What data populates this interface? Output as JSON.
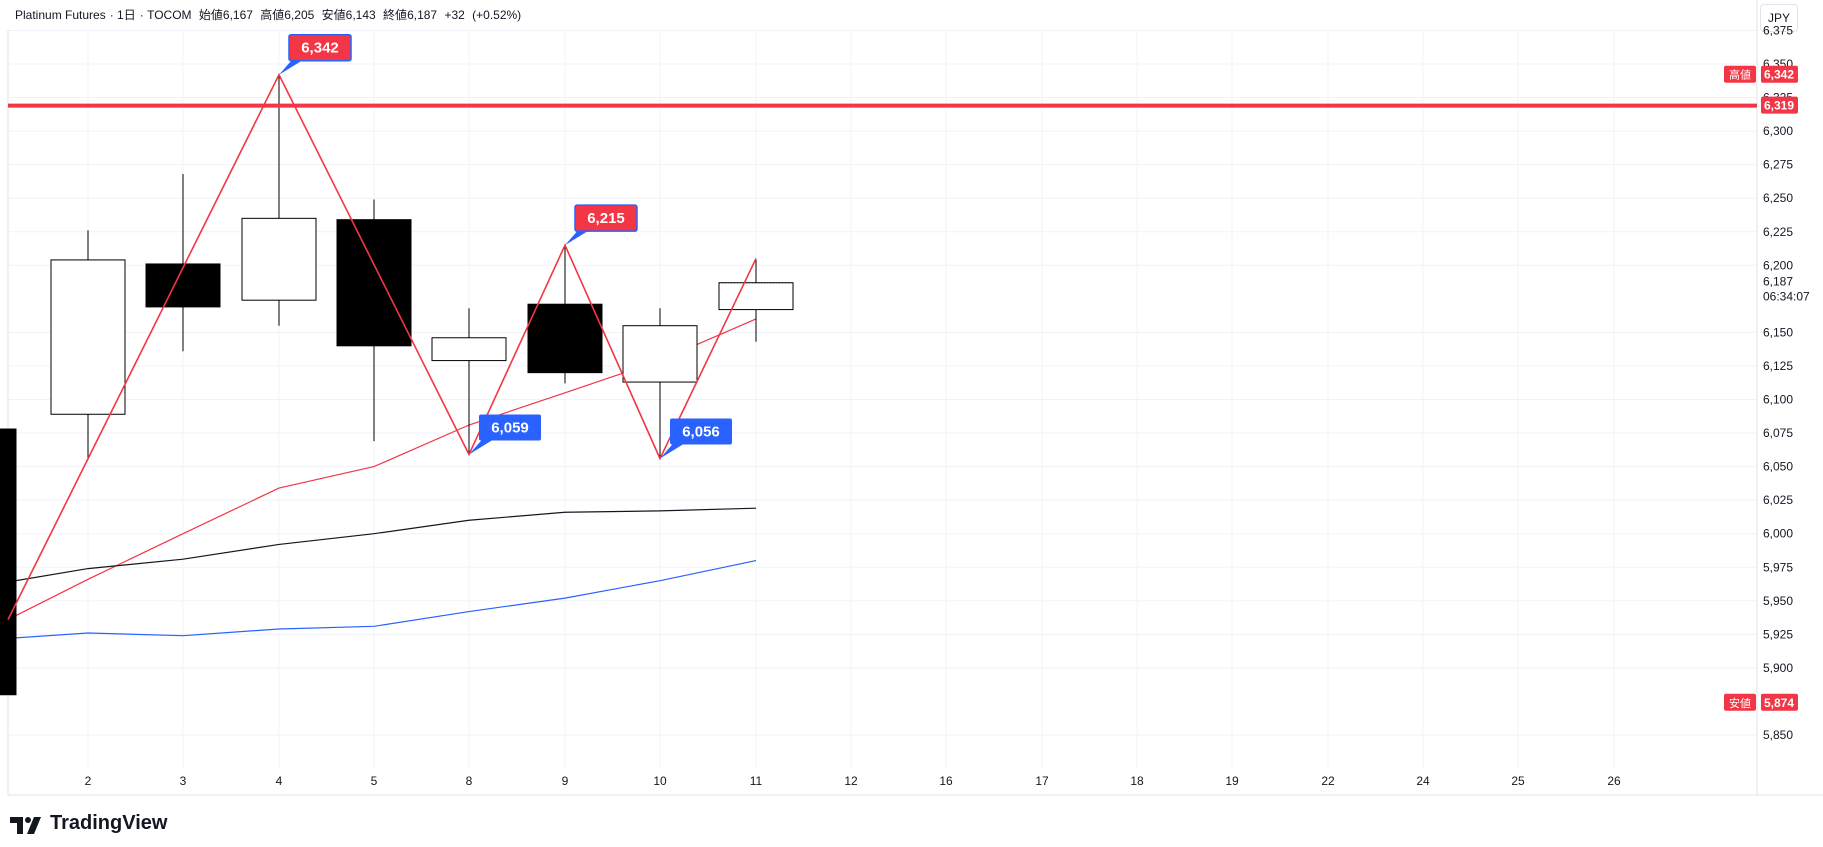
{
  "header": {
    "symbol": "Platinum Futures",
    "interval": "1日",
    "exchange": "TOCOM",
    "open_label": "始値",
    "open": "6,167",
    "high_label": "高値",
    "high": "6,205",
    "low_label": "安値",
    "low": "6,143",
    "close_label": "終値",
    "close": "6,187",
    "change": "+32",
    "change_pct": "(+0.52%)"
  },
  "currency": "JPY",
  "brand": "TradingView",
  "chart_data": {
    "type": "candlestick",
    "x_ticks": [
      "2",
      "3",
      "4",
      "5",
      "8",
      "9",
      "10",
      "11",
      "12",
      "16",
      "17",
      "18",
      "19",
      "22",
      "24",
      "25",
      "26"
    ],
    "y_ticks": [
      "6,375",
      "6,350",
      "6,325",
      "6,300",
      "6,275",
      "6,250",
      "6,225",
      "6,200",
      "6,150",
      "6,125",
      "6,100",
      "6,075",
      "6,050",
      "6,025",
      "6,000",
      "5,975",
      "5,950",
      "5,925",
      "5,900",
      "5,850"
    ],
    "ylim": [
      5830,
      6375
    ],
    "candles": [
      {
        "x": "1",
        "open": 6078,
        "high": 6078,
        "low": 5880,
        "close": 5880,
        "partial": true
      },
      {
        "x": "2",
        "open": 6089,
        "high": 6226,
        "low": 6055,
        "close": 6204
      },
      {
        "x": "3",
        "open": 6201,
        "high": 6268,
        "low": 6136,
        "close": 6169
      },
      {
        "x": "4",
        "open": 6174,
        "high": 6342,
        "low": 6155,
        "close": 6235
      },
      {
        "x": "5",
        "open": 6234,
        "high": 6249,
        "low": 6069,
        "close": 6140
      },
      {
        "x": "8",
        "open": 6129,
        "high": 6168,
        "low": 6059,
        "close": 6146
      },
      {
        "x": "9",
        "open": 6171,
        "high": 6215,
        "low": 6112,
        "close": 6120
      },
      {
        "x": "10",
        "open": 6113,
        "high": 6168,
        "low": 6056,
        "close": 6155
      },
      {
        "x": "11",
        "open": 6167,
        "high": 6205,
        "low": 6143,
        "close": 6187
      }
    ],
    "ma_lines": [
      {
        "color": "#f23645",
        "points": [
          [
            "1",
            5936
          ],
          [
            "2",
            5966
          ],
          [
            "3",
            6000
          ],
          [
            "4",
            6034
          ],
          [
            "5",
            6050
          ],
          [
            "8",
            6081
          ],
          [
            "9",
            6105
          ],
          [
            "10",
            6129
          ],
          [
            "11",
            6160
          ]
        ]
      },
      {
        "color": "#131722",
        "points": [
          [
            "1",
            5964
          ],
          [
            "2",
            5974
          ],
          [
            "3",
            5981
          ],
          [
            "4",
            5992
          ],
          [
            "5",
            6000
          ],
          [
            "8",
            6010
          ],
          [
            "9",
            6016
          ],
          [
            "10",
            6017
          ],
          [
            "11",
            6019
          ]
        ]
      },
      {
        "color": "#2962ff",
        "points": [
          [
            "1",
            5922
          ],
          [
            "2",
            5926
          ],
          [
            "3",
            5924
          ],
          [
            "4",
            5929
          ],
          [
            "5",
            5931
          ],
          [
            "8",
            5942
          ],
          [
            "9",
            5952
          ],
          [
            "10",
            5965
          ],
          [
            "11",
            5980
          ]
        ]
      }
    ],
    "zigzag": [
      [
        "1",
        5936
      ],
      [
        "4",
        6342
      ],
      [
        "8",
        6059
      ],
      [
        "9",
        6215
      ],
      [
        "10",
        6056
      ],
      [
        "11",
        6205
      ]
    ],
    "pivot_labels": [
      {
        "x": "4",
        "value": 6342,
        "text": "6,342",
        "kind": "high"
      },
      {
        "x": "9",
        "value": 6215,
        "text": "6,215",
        "kind": "high"
      },
      {
        "x": "8",
        "value": 6059,
        "text": "6,059",
        "kind": "low"
      },
      {
        "x": "10",
        "value": 6056,
        "text": "6,056",
        "kind": "low"
      }
    ],
    "horizontal_line": {
      "value": 6319,
      "label": "6,319",
      "color": "#f23645"
    },
    "axis_badges": [
      {
        "value": 6342,
        "prefix": "高値",
        "text": "6,342",
        "color": "#f23645"
      },
      {
        "value": 5874,
        "prefix": "安値",
        "text": "5,874",
        "color": "#f23645"
      }
    ],
    "last_price": {
      "value": 6187,
      "text": "6,187",
      "countdown": "06:34:07"
    },
    "grid": true,
    "colors": {
      "up": "#ffffff",
      "down": "#000000",
      "high_badge": "#f23645",
      "low_badge": "#2962ff",
      "zigzag": "#f23645"
    }
  }
}
